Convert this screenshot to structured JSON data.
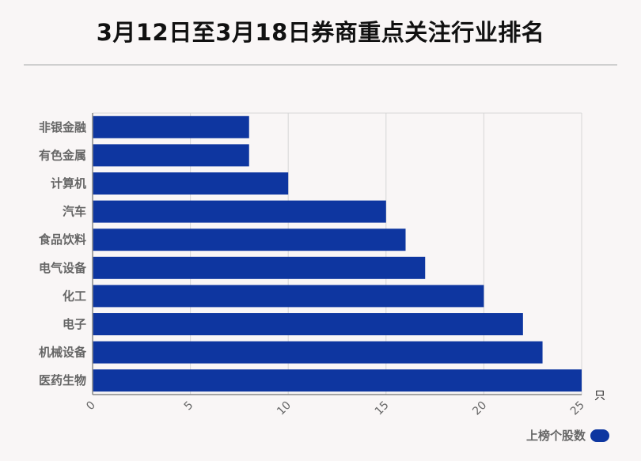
{
  "chart_data": {
    "type": "bar",
    "orientation": "horizontal",
    "title": "3月12日至3月18日券商重点关注行业排名",
    "categories": [
      "非银金融",
      "有色金属",
      "计算机",
      "汽车",
      "食品饮料",
      "电气设备",
      "化工",
      "电子",
      "机械设备",
      "医药生物"
    ],
    "series": [
      {
        "name": "上榜个股数",
        "values": [
          8,
          8,
          10,
          15,
          16,
          17,
          20,
          22,
          23,
          25
        ],
        "color": "#0e36a0"
      }
    ],
    "xlim": [
      0,
      25
    ],
    "xticks": [
      "0",
      "5",
      "10",
      "15",
      "20",
      "25"
    ],
    "xunit": "只",
    "grid": true,
    "legend": "bottom-right"
  }
}
